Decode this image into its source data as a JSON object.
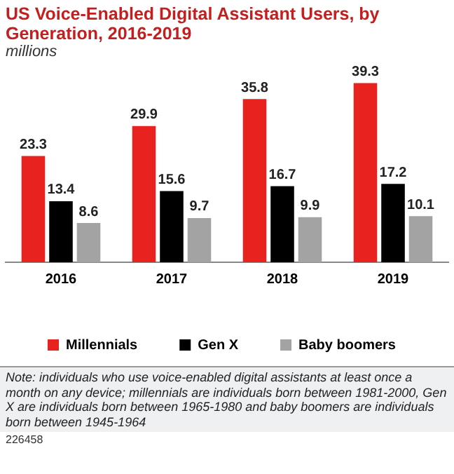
{
  "chart_data": {
    "type": "bar",
    "title": "US Voice-Enabled Digital Assistant Users, by Generation, 2016-2019",
    "subtitle": "millions",
    "categories": [
      "2016",
      "2017",
      "2018",
      "2019"
    ],
    "series": [
      {
        "name": "Millennials",
        "color": "#e8231f",
        "values": [
          23.3,
          29.9,
          35.8,
          39.3
        ]
      },
      {
        "name": "Gen X",
        "color": "#000000",
        "values": [
          13.4,
          15.6,
          16.7,
          17.2
        ]
      },
      {
        "name": "Baby boomers",
        "color": "#a3a3a3",
        "values": [
          8.6,
          9.7,
          9.9,
          10.1
        ]
      }
    ],
    "data_labels": true,
    "legend": "bottom",
    "grid": false,
    "annotations": [
      "Note: individuals who use voice-enabled digital assistants at least once a month on any device; millennials are individuals born between 1981-2000, Gen X are individuals born between 1965-1980 and baby boomers are individuals born between 1945-1964",
      "226458"
    ]
  }
}
